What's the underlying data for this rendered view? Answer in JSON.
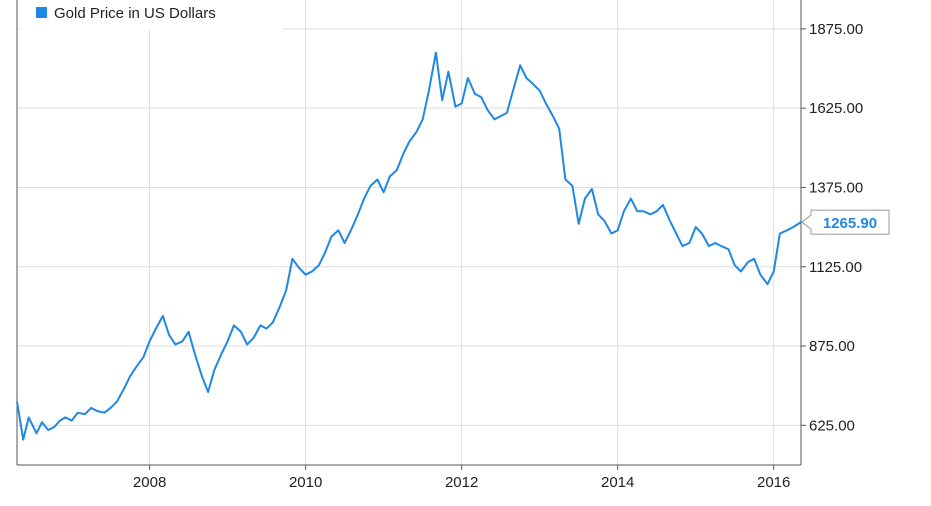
{
  "chart_data": {
    "type": "line",
    "title": "",
    "xlabel": "",
    "ylabel": "",
    "grid": true,
    "legend_position": "top-left",
    "ylim": [
      500,
      1966
    ],
    "xlim": [
      2006.3,
      2016.35
    ],
    "x_ticks": [
      2008,
      2010,
      2012,
      2014,
      2016
    ],
    "x_tick_labels": [
      "2008",
      "2010",
      "2012",
      "2014",
      "2016"
    ],
    "y_ticks": [
      625,
      875,
      1125,
      1375,
      1625,
      1875
    ],
    "y_tick_labels": [
      "625.00",
      "875.00",
      "1125.00",
      "1375.00",
      "1625.00",
      "1875.00"
    ],
    "last_value_label": "1265.90",
    "series": [
      {
        "name": "Gold Price in US Dollars",
        "color": "#1f88e5",
        "x": [
          2006.3,
          2006.38,
          2006.45,
          2006.55,
          2006.62,
          2006.7,
          2006.78,
          2006.85,
          2006.92,
          2007.0,
          2007.08,
          2007.17,
          2007.25,
          2007.33,
          2007.42,
          2007.5,
          2007.58,
          2007.67,
          2007.75,
          2007.83,
          2007.92,
          2008.0,
          2008.08,
          2008.17,
          2008.25,
          2008.33,
          2008.42,
          2008.5,
          2008.58,
          2008.67,
          2008.75,
          2008.83,
          2008.92,
          2009.0,
          2009.08,
          2009.17,
          2009.25,
          2009.33,
          2009.42,
          2009.5,
          2009.58,
          2009.67,
          2009.75,
          2009.83,
          2009.92,
          2010.0,
          2010.08,
          2010.17,
          2010.25,
          2010.33,
          2010.42,
          2010.5,
          2010.58,
          2010.67,
          2010.75,
          2010.83,
          2010.92,
          2011.0,
          2011.08,
          2011.17,
          2011.25,
          2011.33,
          2011.42,
          2011.5,
          2011.58,
          2011.67,
          2011.75,
          2011.83,
          2011.92,
          2012.0,
          2012.08,
          2012.17,
          2012.25,
          2012.33,
          2012.42,
          2012.5,
          2012.58,
          2012.67,
          2012.75,
          2012.83,
          2012.92,
          2013.0,
          2013.08,
          2013.17,
          2013.25,
          2013.33,
          2013.42,
          2013.5,
          2013.58,
          2013.67,
          2013.75,
          2013.83,
          2013.92,
          2014.0,
          2014.08,
          2014.17,
          2014.25,
          2014.33,
          2014.42,
          2014.5,
          2014.58,
          2014.67,
          2014.75,
          2014.83,
          2014.92,
          2015.0,
          2015.08,
          2015.17,
          2015.25,
          2015.33,
          2015.42,
          2015.5,
          2015.58,
          2015.67,
          2015.75,
          2015.83,
          2015.92,
          2016.0,
          2016.08,
          2016.17,
          2016.25,
          2016.35
        ],
        "values": [
          700,
          580,
          650,
          600,
          635,
          610,
          620,
          640,
          650,
          640,
          665,
          660,
          680,
          670,
          665,
          680,
          700,
          740,
          780,
          810,
          840,
          890,
          930,
          970,
          910,
          880,
          890,
          920,
          850,
          780,
          730,
          800,
          850,
          890,
          940,
          920,
          880,
          900,
          940,
          930,
          950,
          1000,
          1050,
          1150,
          1120,
          1100,
          1110,
          1130,
          1170,
          1220,
          1240,
          1200,
          1240,
          1290,
          1340,
          1380,
          1400,
          1360,
          1410,
          1430,
          1480,
          1520,
          1550,
          1590,
          1680,
          1800,
          1650,
          1740,
          1630,
          1640,
          1720,
          1670,
          1660,
          1620,
          1590,
          1600,
          1610,
          1690,
          1760,
          1720,
          1700,
          1680,
          1640,
          1600,
          1560,
          1400,
          1380,
          1260,
          1340,
          1370,
          1290,
          1270,
          1230,
          1240,
          1300,
          1340,
          1300,
          1300,
          1290,
          1300,
          1320,
          1270,
          1230,
          1190,
          1200,
          1250,
          1230,
          1190,
          1200,
          1190,
          1180,
          1130,
          1110,
          1140,
          1150,
          1100,
          1070,
          1110,
          1230,
          1240,
          1250,
          1265.9
        ]
      }
    ]
  }
}
